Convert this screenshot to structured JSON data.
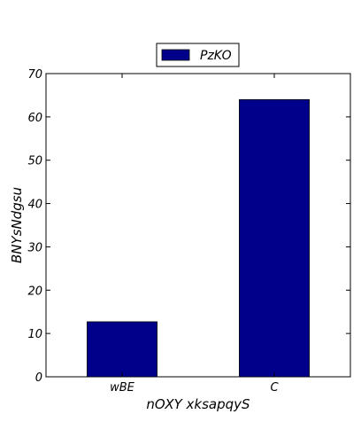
{
  "chart_data": {
    "type": "bar",
    "categories": [
      "wBE",
      "C"
    ],
    "series": [
      {
        "name": "PzKO",
        "values": [
          12.7,
          64.0
        ],
        "color": "#00008b"
      }
    ],
    "xlabel": "nOXY xksapqyS",
    "ylabel": "BNYsNdgsu",
    "ylim": [
      0,
      70
    ],
    "yticks": [
      0,
      10,
      20,
      30,
      40,
      50,
      60,
      70
    ],
    "grid": false,
    "legend": {
      "position": "top-center"
    }
  }
}
